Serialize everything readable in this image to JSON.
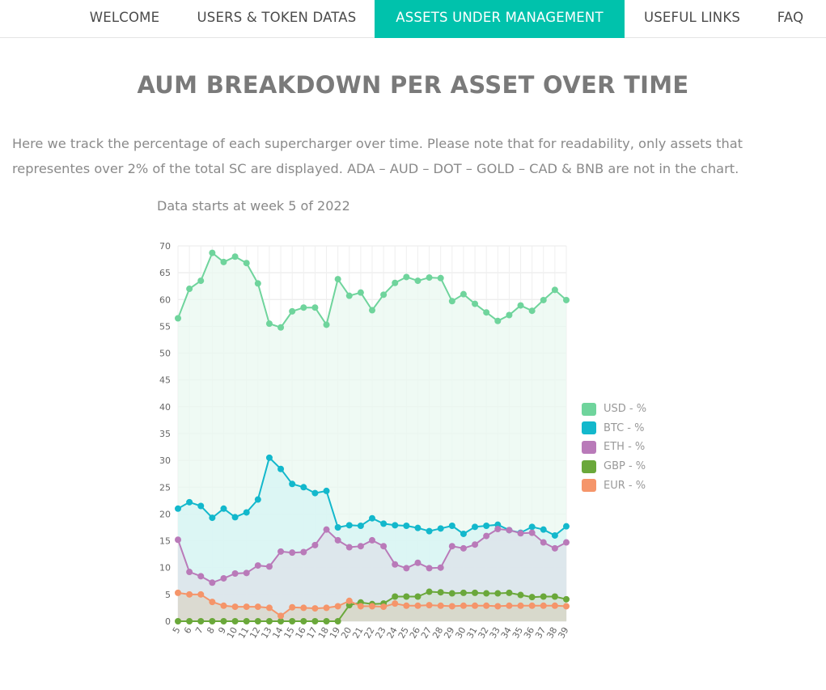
{
  "nav": {
    "items": [
      {
        "label": "WELCOME",
        "active": false
      },
      {
        "label": "USERS & TOKEN DATAS",
        "active": false
      },
      {
        "label": "ASSETS UNDER MANAGEMENT",
        "active": true
      },
      {
        "label": "USEFUL LINKS",
        "active": false
      },
      {
        "label": "FAQ",
        "active": false
      }
    ]
  },
  "page": {
    "title": "AUM BREAKDOWN PER ASSET OVER TIME",
    "intro": "Here we track the percentage of each supercharger over time. Please note that for readability, only assets that representes over 2% of the total SC are displayed. ADA – AUD – DOT – GOLD – CAD & BNB are not in the chart.",
    "chart_note": "Data starts at week 5 of 2022"
  },
  "chart_data": {
    "type": "area",
    "title": "",
    "xlabel": "",
    "ylabel": "",
    "ylim": [
      0,
      70
    ],
    "ytick_step": 5,
    "grid": true,
    "legend_position": "right",
    "x": [
      5,
      6,
      7,
      8,
      9,
      10,
      11,
      12,
      13,
      14,
      15,
      16,
      17,
      18,
      19,
      20,
      21,
      22,
      23,
      24,
      25,
      26,
      27,
      28,
      29,
      30,
      31,
      32,
      33,
      34,
      35,
      36,
      37,
      38,
      39
    ],
    "series": [
      {
        "name": "USD - %",
        "color": "#6fd49c",
        "fill": "#eaf8f0",
        "values": [
          56.5,
          62,
          63.5,
          68.7,
          67,
          68,
          66.8,
          63,
          55.5,
          54.8,
          57.8,
          58.5,
          58.5,
          55.3,
          63.8,
          60.7,
          61.3,
          58,
          60.9,
          63.1,
          64.2,
          63.5,
          64.1,
          64,
          59.7,
          61,
          59.2,
          57.6,
          56,
          57.1,
          58.9,
          57.9,
          59.9,
          61.8,
          59.9
        ]
      },
      {
        "name": "BTC - %",
        "color": "#13b8cc",
        "fill": "#d6f4f4",
        "values": [
          21,
          22.2,
          21.5,
          19.3,
          21,
          19.4,
          20.3,
          22.7,
          30.5,
          28.4,
          25.6,
          25,
          23.9,
          24.3,
          17.5,
          17.9,
          17.8,
          19.2,
          18.2,
          17.9,
          17.8,
          17.4,
          16.8,
          17.3,
          17.8,
          16.3,
          17.6,
          17.8,
          18,
          17,
          16.5,
          17.6,
          17.1,
          16,
          17.7
        ]
      },
      {
        "name": "ETH - %",
        "color": "#b97ab9",
        "fill": "#dde2ea",
        "values": [
          15.2,
          9.2,
          8.4,
          7.2,
          8,
          8.9,
          9,
          10.4,
          10.2,
          13,
          12.8,
          12.9,
          14.2,
          17.1,
          15.1,
          13.8,
          14,
          15.1,
          14,
          10.6,
          9.9,
          10.9,
          9.9,
          10,
          14,
          13.6,
          14.3,
          15.9,
          17.2,
          17,
          16.4,
          16.5,
          14.7,
          13.6,
          14.7
        ]
      },
      {
        "name": "GBP - %",
        "color": "#6aa83a",
        "fill": "#cfe0d0",
        "values": [
          0,
          0,
          0,
          0,
          0,
          0,
          0,
          0,
          0,
          0,
          0,
          0,
          0,
          0,
          0,
          3,
          3.5,
          3.2,
          3.3,
          4.6,
          4.6,
          4.6,
          5.5,
          5.4,
          5.2,
          5.3,
          5.3,
          5.2,
          5.2,
          5.3,
          4.9,
          4.5,
          4.6,
          4.6,
          4.1
        ]
      },
      {
        "name": "EUR - %",
        "color": "#f5956a",
        "fill": "#d9d6c8",
        "values": [
          5.3,
          5,
          5,
          3.6,
          2.9,
          2.7,
          2.7,
          2.7,
          2.5,
          1,
          2.6,
          2.5,
          2.4,
          2.5,
          2.8,
          3.8,
          2.8,
          2.8,
          2.7,
          3.3,
          2.9,
          2.9,
          3,
          2.9,
          2.8,
          2.9,
          2.9,
          2.9,
          2.8,
          2.9,
          2.9,
          2.9,
          2.9,
          2.9,
          2.8
        ]
      }
    ]
  }
}
